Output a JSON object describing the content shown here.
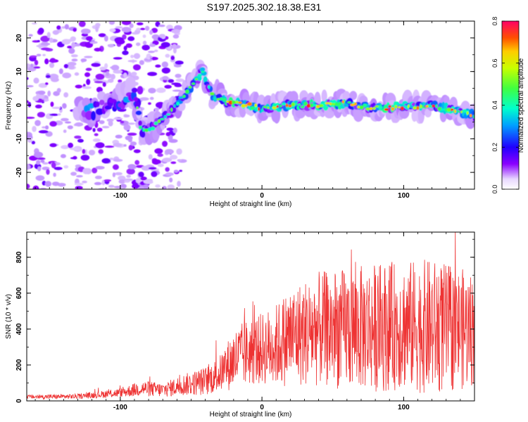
{
  "title": "S197.2025.302.18.38.E31",
  "chart_data": [
    {
      "type": "heatmap",
      "name": "spectrogram",
      "xlabel": "Height of straight line (km)",
      "ylabel": "Frequency (Hz)",
      "xlim": [
        -166,
        150
      ],
      "ylim": [
        -25,
        25
      ],
      "xticks": [
        -100,
        0,
        100
      ],
      "yticks": [
        -20,
        -10,
        0,
        10,
        20
      ],
      "colorbar": {
        "label": "Normalized spectral amplitude",
        "range": [
          0,
          0.8
        ],
        "ticks": [
          "0.0",
          "0.2",
          "0.4",
          "0.6",
          "0.8"
        ]
      },
      "ridge": [
        {
          "x": -130,
          "y": -1
        },
        {
          "x": -120,
          "y": -2
        },
        {
          "x": -110,
          "y": 1
        },
        {
          "x": -100,
          "y": 3
        },
        {
          "x": -90,
          "y": 4
        },
        {
          "x": -85,
          "y": -8
        },
        {
          "x": -75,
          "y": -6
        },
        {
          "x": -65,
          "y": -2
        },
        {
          "x": -55,
          "y": 3
        },
        {
          "x": -45,
          "y": 8
        },
        {
          "x": -42,
          "y": 10
        },
        {
          "x": -35,
          "y": 3
        },
        {
          "x": -25,
          "y": 1
        },
        {
          "x": -10,
          "y": 0
        },
        {
          "x": 0,
          "y": -1
        },
        {
          "x": 20,
          "y": 0
        },
        {
          "x": 40,
          "y": 0
        },
        {
          "x": 60,
          "y": 0.5
        },
        {
          "x": 80,
          "y": -1
        },
        {
          "x": 100,
          "y": -0.5
        },
        {
          "x": 120,
          "y": 0
        },
        {
          "x": 140,
          "y": -2
        },
        {
          "x": 150,
          "y": -3
        }
      ]
    },
    {
      "type": "line",
      "name": "snr",
      "xlabel": "Height of straight line (km)",
      "ylabel": "SNR (10 * v/v)",
      "xlim": [
        -166,
        150
      ],
      "ylim": [
        0,
        940
      ],
      "xticks": [
        -100,
        0,
        100
      ],
      "yticks": [
        0,
        200,
        400,
        600,
        800
      ],
      "color": "#ee3333",
      "envelope": [
        {
          "x": -166,
          "base": 22,
          "spread": 12
        },
        {
          "x": -130,
          "base": 25,
          "spread": 14
        },
        {
          "x": -100,
          "base": 45,
          "spread": 25
        },
        {
          "x": -85,
          "base": 70,
          "spread": 45
        },
        {
          "x": -70,
          "base": 60,
          "spread": 40
        },
        {
          "x": -55,
          "base": 90,
          "spread": 60
        },
        {
          "x": -40,
          "base": 110,
          "spread": 80
        },
        {
          "x": -30,
          "base": 150,
          "spread": 100
        },
        {
          "x": -20,
          "base": 230,
          "spread": 170
        },
        {
          "x": -10,
          "base": 270,
          "spread": 190
        },
        {
          "x": 0,
          "base": 290,
          "spread": 200
        },
        {
          "x": 10,
          "base": 310,
          "spread": 230
        },
        {
          "x": 20,
          "base": 360,
          "spread": 280
        },
        {
          "x": 40,
          "base": 400,
          "spread": 320
        },
        {
          "x": 60,
          "base": 400,
          "spread": 340
        },
        {
          "x": 80,
          "base": 410,
          "spread": 360
        },
        {
          "x": 100,
          "base": 420,
          "spread": 360
        },
        {
          "x": 120,
          "base": 410,
          "spread": 380
        },
        {
          "x": 140,
          "base": 400,
          "spread": 340
        },
        {
          "x": 150,
          "base": 400,
          "spread": 320
        }
      ]
    }
  ]
}
